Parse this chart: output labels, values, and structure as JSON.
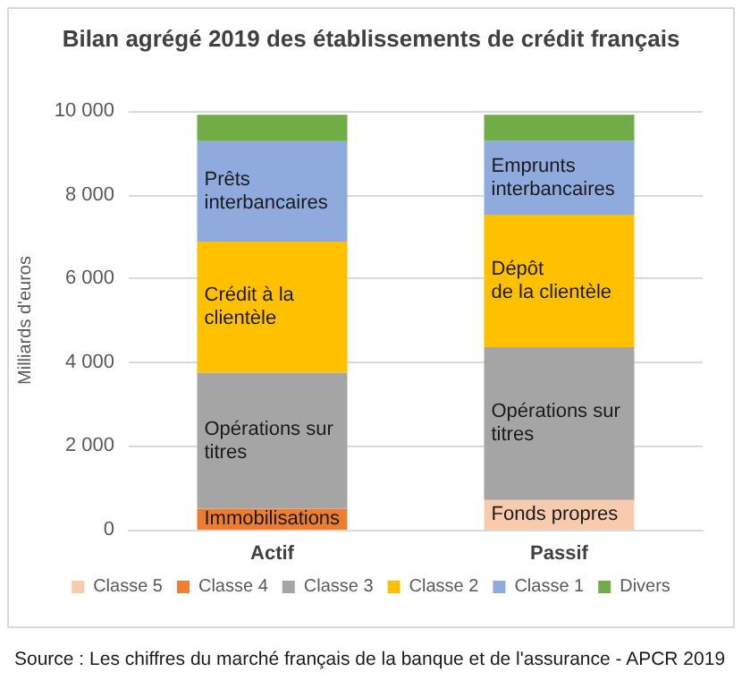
{
  "chart_data": {
    "type": "bar",
    "stacked": true,
    "title": "Bilan agrégé 2019 des établissements de crédit français",
    "ylabel": "Milliards d'euros",
    "categories": [
      "Actif",
      "Passif"
    ],
    "series": [
      {
        "name": "Classe 5",
        "color": "#f8cbad",
        "values": [
          0,
          710
        ]
      },
      {
        "name": "Classe 4",
        "color": "#ed7d31",
        "values": [
          500,
          0
        ]
      },
      {
        "name": "Classe 3",
        "color": "#a5a5a5",
        "values": [
          3250,
          3650
        ]
      },
      {
        "name": "Classe 2",
        "color": "#ffc000",
        "values": [
          3130,
          3160
        ]
      },
      {
        "name": "Classe 1",
        "color": "#8faadc",
        "values": [
          2400,
          1770
        ]
      },
      {
        "name": "Divers",
        "color": "#70ad47",
        "values": [
          630,
          620
        ]
      }
    ],
    "ylim": [
      0,
      10000
    ],
    "yticks": [
      {
        "value": 0,
        "label": "0"
      },
      {
        "value": 2000,
        "label": "2 000"
      },
      {
        "value": 4000,
        "label": "4 000"
      },
      {
        "value": 6000,
        "label": "6 000"
      },
      {
        "value": 8000,
        "label": "8 000"
      },
      {
        "value": 10000,
        "label": "10 000"
      }
    ],
    "grid": "y",
    "legend": "bottom",
    "annotations": [
      "Immobilisations",
      "Opérations sur\ntitres",
      "Crédit à la\nclientèle",
      "Prêts\ninterbancaires",
      "Fonds propres",
      "Opérations sur\ntitres",
      "Dépôt\nde la clientèle",
      "Emprunts\ninterbancaires",
      "Source : Les chiffres du marché français de la banque et de l'assurance - APCR 2019"
    ]
  }
}
